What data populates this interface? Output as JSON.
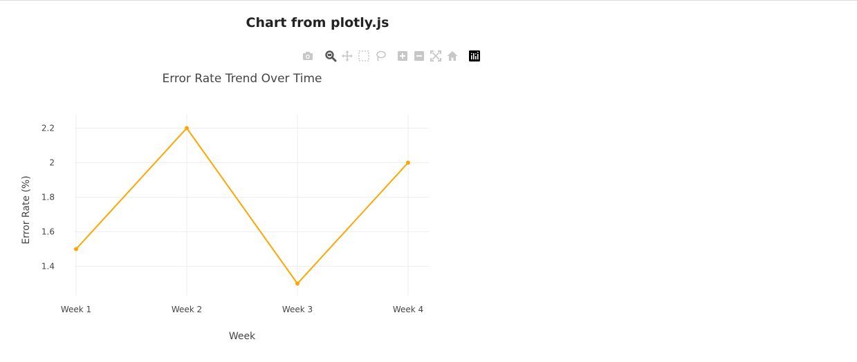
{
  "page": {
    "title": "Chart from plotly.js"
  },
  "modebar": {
    "buttons": [
      {
        "name": "camera-icon",
        "label": "Download plot as a png"
      },
      {
        "name": "zoom-icon",
        "label": "Zoom"
      },
      {
        "name": "pan-icon",
        "label": "Pan"
      },
      {
        "name": "box-select-icon",
        "label": "Box Select"
      },
      {
        "name": "lasso-select-icon",
        "label": "Lasso Select"
      },
      {
        "name": "zoom-in-icon",
        "label": "Zoom in"
      },
      {
        "name": "zoom-out-icon",
        "label": "Zoom out"
      },
      {
        "name": "autoscale-icon",
        "label": "Autoscale"
      },
      {
        "name": "reset-axes-icon",
        "label": "Reset axes"
      },
      {
        "name": "plotly-logo-icon",
        "label": "Produced with Plotly"
      }
    ]
  },
  "chart_data": {
    "type": "line",
    "title": "Error Rate Trend Over Time",
    "xlabel": "Week",
    "ylabel": "Error Rate (%)",
    "categories": [
      "Week 1",
      "Week 2",
      "Week 3",
      "Week 4"
    ],
    "series": [
      {
        "values": [
          1.5,
          2.2,
          1.3,
          2.0
        ],
        "color": "#FFA500"
      }
    ],
    "yticks": [
      1.4,
      1.6,
      1.8,
      2,
      2.2
    ],
    "ylim": [
      1.23,
      2.27
    ],
    "grid": true,
    "legend": "none"
  }
}
